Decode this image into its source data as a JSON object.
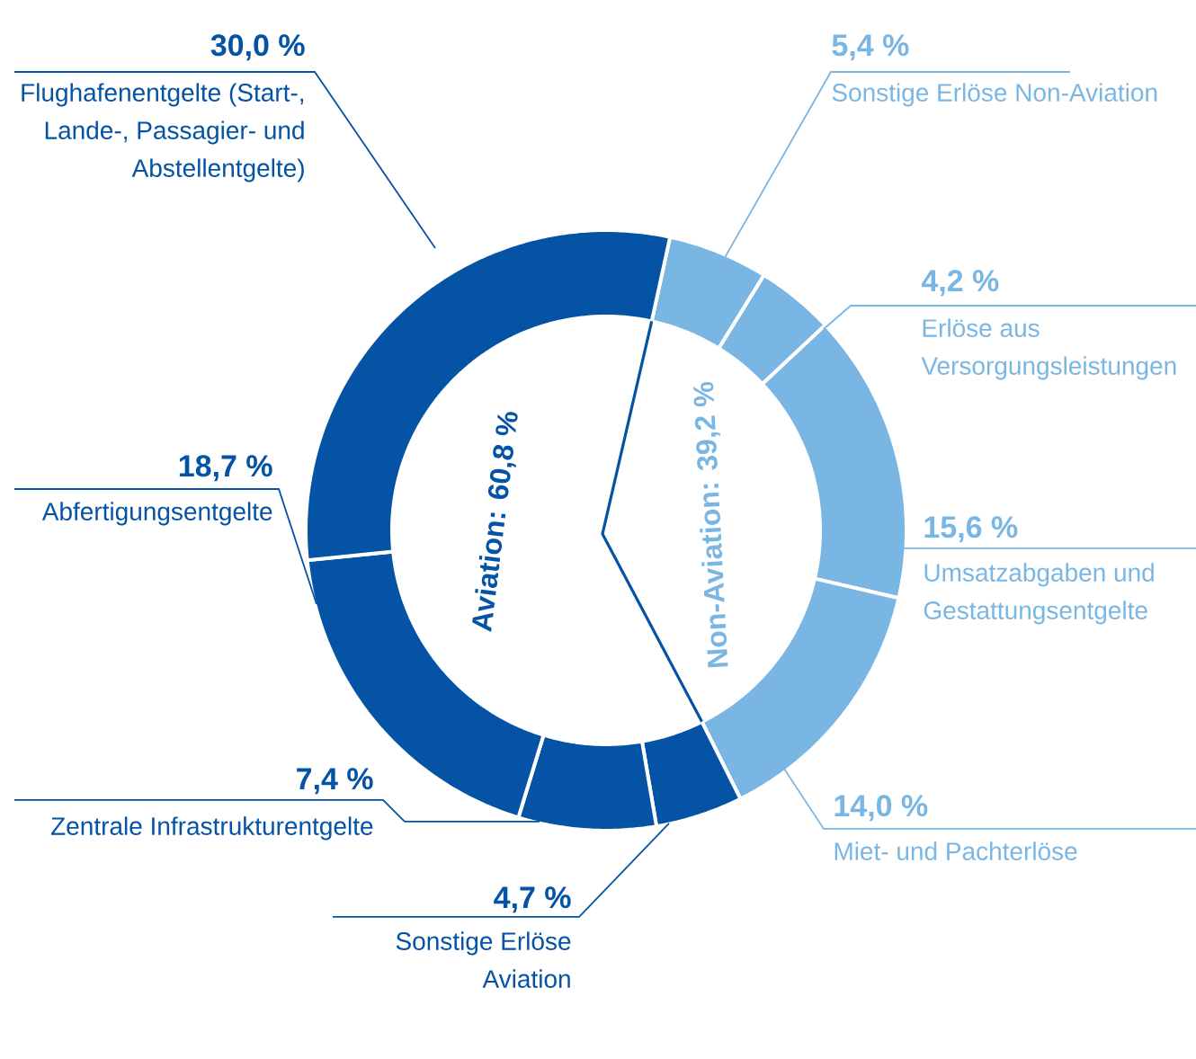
{
  "chart_data": {
    "type": "donut",
    "categories": [
      "Sonstige Erlöse Non-Aviation",
      "Erlöse aus Versorgungsleistungen",
      "Umsatzabgaben und Gestattungsentgelte",
      "Miet- und Pachterlöse",
      "Sonstige Erlöse Aviation",
      "Zentrale Infrastrukturentgelte",
      "Abfertigungsentgelte",
      "Flughafenentgelte (Start-, Lande-, Passagier- und Abstellentgelte)"
    ],
    "values": [
      5.4,
      4.2,
      15.6,
      14.0,
      4.7,
      7.4,
      18.7,
      30.0
    ],
    "colors": [
      "#7ab6e3",
      "#7ab6e3",
      "#7ab6e3",
      "#7ab6e3",
      "#0453a5",
      "#0453a5",
      "#0453a5",
      "#0453a5"
    ],
    "value_labels": [
      "5,4 %",
      "4,2 %",
      "15,6 %",
      "14,0 %",
      "4,7 %",
      "7,4 %",
      "18,7 %",
      "30,0 %"
    ],
    "annotations": [
      "Aviation: 60,8 %",
      "Non-Aviation: 39,2 %"
    ]
  }
}
